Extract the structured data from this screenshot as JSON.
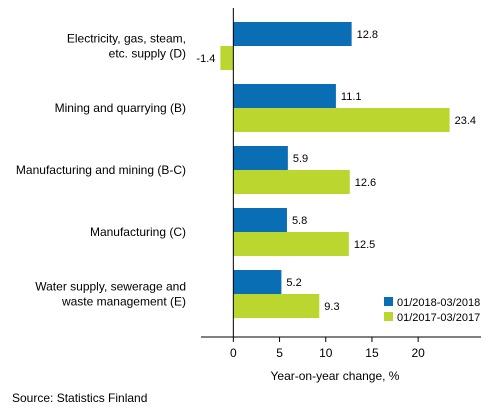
{
  "chart_data": {
    "type": "bar",
    "orientation": "horizontal",
    "categories": [
      [
        "Electricity, gas, steam,",
        "etc. supply (D)"
      ],
      [
        "Mining and quarrying (B)"
      ],
      [
        "Manufacturing and mining (B-C)"
      ],
      [
        "Manufacturing (C)"
      ],
      [
        "Water supply, sewerage and",
        "waste management (E)"
      ]
    ],
    "series": [
      {
        "name": "01/2018-03/2018",
        "color": "#0a6eb4",
        "values": [
          12.8,
          11.1,
          5.9,
          5.8,
          5.2
        ]
      },
      {
        "name": "01/2017-03/2017",
        "color": "#bcd630",
        "values": [
          -1.4,
          23.4,
          12.6,
          12.5,
          9.3
        ]
      }
    ],
    "xlabel": "Year-on-year change, %",
    "xlim": [
      -3.5,
      26.8
    ],
    "xticks": [
      0,
      5,
      10,
      15,
      20
    ],
    "grid": false,
    "legend_position": "bottom-right"
  },
  "source": "Source: Statistics Finland"
}
